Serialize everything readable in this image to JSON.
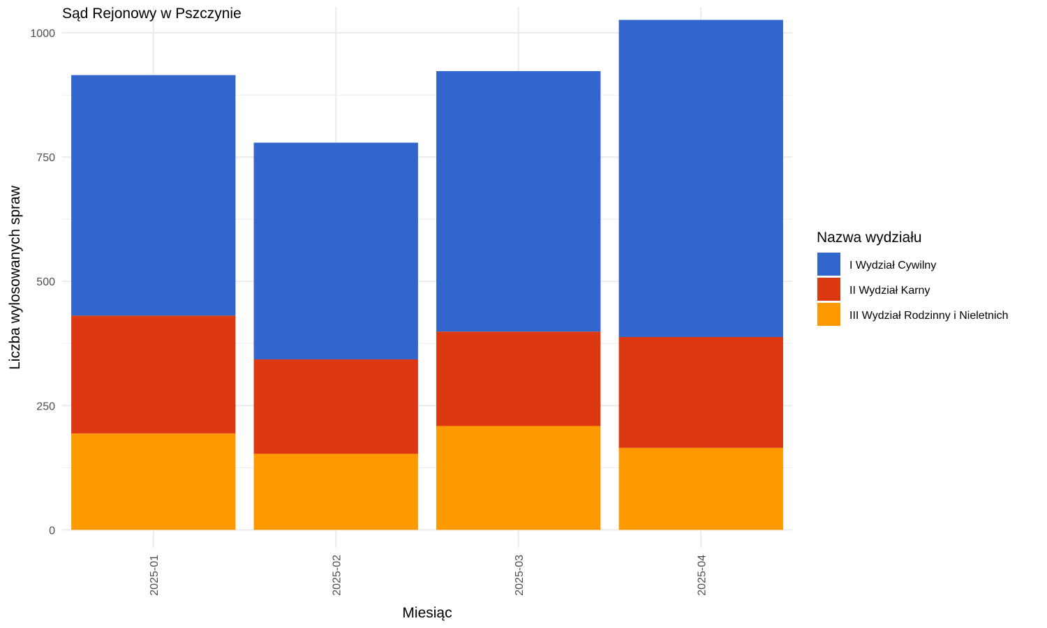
{
  "chart_data": {
    "type": "bar",
    "stacked": true,
    "title": "Sąd Rejonowy w Pszczynie",
    "xlabel": "Miesiąc",
    "ylabel": "Liczba wylosowanych spraw",
    "categories": [
      "2025-01",
      "2025-02",
      "2025-03",
      "2025-04"
    ],
    "series": [
      {
        "name": "III Wydział Rodzinny i Nieletnich",
        "color": "#FF9900",
        "values": [
          194,
          153,
          209,
          165
        ]
      },
      {
        "name": "II Wydział Karny",
        "color": "#DC3912",
        "values": [
          237,
          190,
          190,
          223
        ]
      },
      {
        "name": "I Wydział Cywilny",
        "color": "#3366CC",
        "values": [
          484,
          436,
          524,
          638
        ]
      }
    ],
    "ylim": [
      -36,
      1052
    ],
    "yticks": [
      0,
      250,
      500,
      750,
      1000
    ],
    "grid": true,
    "legend": {
      "title": "Nazwa wydziału",
      "position": "right",
      "order": [
        "I Wydział Cywilny",
        "II Wydział Karny",
        "III Wydział Rodzinny i Nieletnich"
      ]
    }
  }
}
